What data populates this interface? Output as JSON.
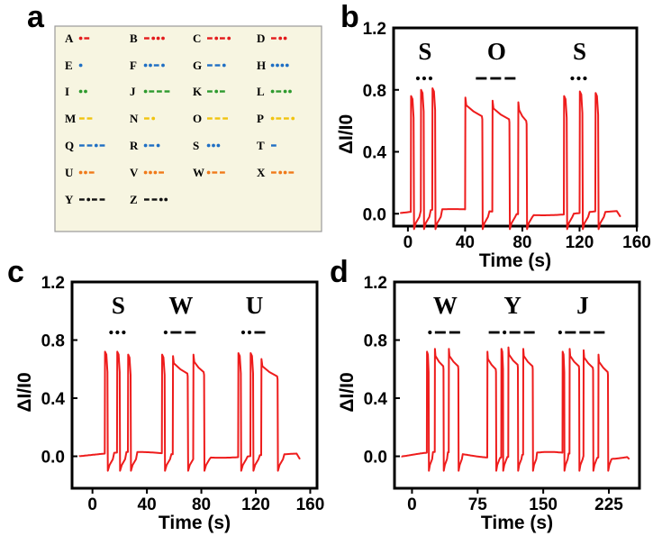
{
  "panel_labels": [
    "a",
    "b",
    "c",
    "d"
  ],
  "colors": {
    "signal": "#ee1c1c",
    "red": "#e31a1c",
    "blue": "#1f6fc4",
    "green": "#2e9a2e",
    "yellow": "#f1c40f",
    "orange": "#f07a1a",
    "black": "#111111",
    "table_bg": "#f7f5e1"
  },
  "morse_table": [
    {
      "letter": "A",
      "code": ".-",
      "color": "red"
    },
    {
      "letter": "B",
      "code": "-...",
      "color": "red"
    },
    {
      "letter": "C",
      "code": "-.-.",
      "color": "red"
    },
    {
      "letter": "D",
      "code": "-..",
      "color": "red"
    },
    {
      "letter": "E",
      "code": ".",
      "color": "blue"
    },
    {
      "letter": "F",
      "code": "..-.",
      "color": "blue"
    },
    {
      "letter": "G",
      "code": "--.",
      "color": "blue"
    },
    {
      "letter": "H",
      "code": "....",
      "color": "blue"
    },
    {
      "letter": "I",
      "code": "..",
      "color": "green"
    },
    {
      "letter": "J",
      "code": ".---",
      "color": "green"
    },
    {
      "letter": "K",
      "code": "-.-",
      "color": "green"
    },
    {
      "letter": "L",
      "code": ".-..",
      "color": "green"
    },
    {
      "letter": "M",
      "code": "--",
      "color": "yellow"
    },
    {
      "letter": "N",
      "code": "-.",
      "color": "yellow"
    },
    {
      "letter": "O",
      "code": "---",
      "color": "yellow"
    },
    {
      "letter": "P",
      "code": ".--.",
      "color": "yellow"
    },
    {
      "letter": "Q",
      "code": "--.-",
      "color": "blue"
    },
    {
      "letter": "R",
      "code": ".-.",
      "color": "blue"
    },
    {
      "letter": "S",
      "code": "...",
      "color": "blue"
    },
    {
      "letter": "T",
      "code": "-",
      "color": "blue"
    },
    {
      "letter": "U",
      "code": "..-",
      "color": "orange"
    },
    {
      "letter": "V",
      "code": "...-",
      "color": "orange"
    },
    {
      "letter": "W",
      "code": ".--",
      "color": "orange"
    },
    {
      "letter": "X",
      "code": "-..-",
      "color": "orange"
    },
    {
      "letter": "Y",
      "code": "-.--",
      "color": "black"
    },
    {
      "letter": "Z",
      "code": "--..",
      "color": "black"
    }
  ],
  "chart_data": [
    {
      "panel": "b",
      "type": "line",
      "xlabel": "Time (s)",
      "ylabel": "ΔI/I0",
      "xlim": [
        -10,
        160
      ],
      "ylim": [
        -0.08,
        1.2
      ],
      "xticks": [
        0,
        40,
        80,
        120,
        160
      ],
      "yticks": [
        0.0,
        0.4,
        0.8,
        1.2
      ],
      "ytick_labels": [
        "0.0",
        "0.4",
        "0.8",
        "1.2"
      ],
      "words": [
        {
          "text": "S",
          "code": "...",
          "x": 12
        },
        {
          "text": "O",
          "code": "---",
          "x": 62
        },
        {
          "text": "S",
          "code": "...",
          "x": 120
        }
      ],
      "pulses": [
        {
          "start": 2,
          "end": 4,
          "peak": 0.76
        },
        {
          "start": 9,
          "end": 11,
          "peak": 0.8
        },
        {
          "start": 17,
          "end": 19,
          "peak": 0.81
        },
        {
          "start": 40,
          "end": 52,
          "peak": 0.75
        },
        {
          "start": 59,
          "end": 71,
          "peak": 0.73
        },
        {
          "start": 77,
          "end": 83,
          "peak": 0.72
        },
        {
          "start": 109,
          "end": 111,
          "peak": 0.76
        },
        {
          "start": 120,
          "end": 122,
          "peak": 0.79
        },
        {
          "start": 131,
          "end": 133,
          "peak": 0.78
        }
      ]
    },
    {
      "panel": "c",
      "type": "line",
      "xlabel": "Time (s)",
      "ylabel": "ΔI/I0",
      "xlim": [
        -15,
        165
      ],
      "ylim": [
        -0.22,
        1.2
      ],
      "xticks": [
        0,
        40,
        80,
        120,
        160
      ],
      "yticks": [
        0.0,
        0.4,
        0.8,
        1.2
      ],
      "ytick_labels": [
        "0.0",
        "0.4",
        "0.8",
        "1.2"
      ],
      "words": [
        {
          "text": "S",
          "code": "...",
          "x": 19
        },
        {
          "text": "W",
          "code": ".--",
          "x": 65
        },
        {
          "text": "U",
          "code": "..-",
          "x": 119
        }
      ],
      "pulses": [
        {
          "start": 9,
          "end": 11,
          "peak": 0.72
        },
        {
          "start": 18,
          "end": 20,
          "peak": 0.72
        },
        {
          "start": 26,
          "end": 28,
          "peak": 0.7
        },
        {
          "start": 51,
          "end": 53,
          "peak": 0.7
        },
        {
          "start": 59,
          "end": 70,
          "peak": 0.69
        },
        {
          "start": 74,
          "end": 82,
          "peak": 0.7
        },
        {
          "start": 107,
          "end": 109,
          "peak": 0.71
        },
        {
          "start": 116,
          "end": 118,
          "peak": 0.71
        },
        {
          "start": 124,
          "end": 136,
          "peak": 0.67
        }
      ]
    },
    {
      "panel": "d",
      "type": "line",
      "xlabel": "Time (s)",
      "ylabel": "ΔI/I0",
      "xlim": [
        -20,
        260
      ],
      "ylim": [
        -0.22,
        1.2
      ],
      "xticks": [
        0,
        75,
        150,
        225
      ],
      "yticks": [
        0.0,
        0.4,
        0.8,
        1.2
      ],
      "ytick_labels": [
        "0.0",
        "0.4",
        "0.8",
        "1.2"
      ],
      "words": [
        {
          "text": "W",
          "code": ".--",
          "x": 38
        },
        {
          "text": "Y",
          "code": "-.--",
          "x": 115
        },
        {
          "text": "J",
          "code": ".---",
          "x": 195
        }
      ],
      "pulses": [
        {
          "start": 17,
          "end": 19,
          "peak": 0.72
        },
        {
          "start": 26,
          "end": 36,
          "peak": 0.74
        },
        {
          "start": 42,
          "end": 53,
          "peak": 0.74
        },
        {
          "start": 86,
          "end": 96,
          "peak": 0.72
        },
        {
          "start": 102,
          "end": 104,
          "peak": 0.74
        },
        {
          "start": 110,
          "end": 121,
          "peak": 0.75
        },
        {
          "start": 127,
          "end": 138,
          "peak": 0.74
        },
        {
          "start": 172,
          "end": 174,
          "peak": 0.72
        },
        {
          "start": 180,
          "end": 191,
          "peak": 0.74
        },
        {
          "start": 196,
          "end": 207,
          "peak": 0.73
        },
        {
          "start": 213,
          "end": 224,
          "peak": 0.7
        }
      ]
    }
  ]
}
